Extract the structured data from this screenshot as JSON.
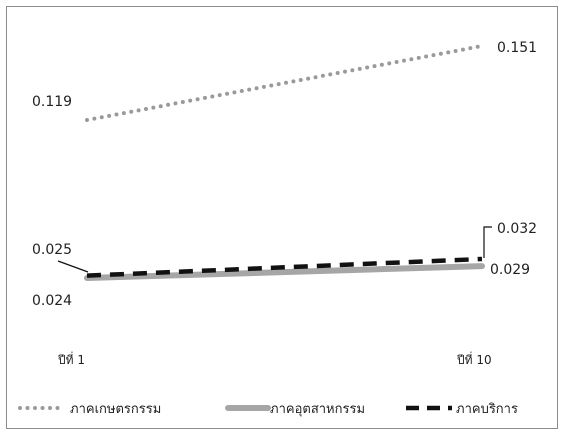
{
  "chart_data": {
    "type": "line",
    "x": [
      "ปีที่ 1",
      "ปีที่ 10"
    ],
    "series": [
      {
        "name": "ภาคเกษตรกรรม",
        "values": [
          0.119,
          0.151
        ],
        "color": "#9a9a9a",
        "style": "dotted",
        "labels": [
          "0.119",
          "0.151"
        ]
      },
      {
        "name": "ภาคอุตสาหกรรม",
        "values": [
          0.024,
          0.029
        ],
        "color": "#a6a6a6",
        "style": "solid-thick",
        "labels": [
          "0.024",
          "0.029"
        ]
      },
      {
        "name": "ภาคบริการ",
        "values": [
          0.025,
          0.032
        ],
        "color": "#111111",
        "style": "dashed",
        "labels": [
          "0.025",
          "0.032"
        ]
      }
    ],
    "legend_position": "bottom",
    "grid": false
  }
}
